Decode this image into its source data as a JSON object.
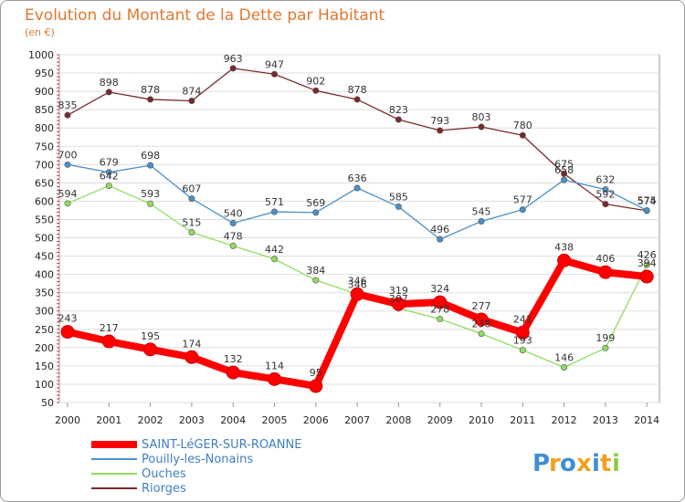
{
  "chart_data": {
    "type": "line",
    "title": "Evolution du Montant de la Dette par Habitant",
    "subtitle": "(en €)",
    "xlabel": "",
    "ylabel": "",
    "ylim": [
      50,
      1000
    ],
    "yticks": [
      50,
      100,
      150,
      200,
      250,
      300,
      350,
      400,
      450,
      500,
      550,
      600,
      650,
      700,
      750,
      800,
      850,
      900,
      950,
      1000
    ],
    "x": [
      "2000",
      "2001",
      "2002",
      "2003",
      "2004",
      "2005",
      "2006",
      "2007",
      "2008",
      "2009",
      "2010",
      "2011",
      "2012",
      "2013",
      "2014"
    ],
    "grid": true,
    "legend_position": "bottom-left",
    "series": [
      {
        "name": "SAINT-LéGER-SUR-ROANNE",
        "color": "#ff0000",
        "values": [
          243,
          217,
          195,
          174,
          132,
          114,
          95,
          346,
          319,
          324,
          277,
          241,
          438,
          406,
          394
        ]
      },
      {
        "name": "Pouilly-les-Nonains",
        "color": "#4a90c8",
        "values": [
          700,
          679,
          698,
          607,
          540,
          571,
          569,
          636,
          585,
          496,
          545,
          577,
          658,
          632,
          575
        ]
      },
      {
        "name": "Ouches",
        "color": "#90dd60",
        "values": [
          594,
          642,
          593,
          515,
          478,
          442,
          384,
          346,
          307,
          278,
          238,
          193,
          146,
          199,
          426
        ]
      },
      {
        "name": "Riorges",
        "color": "#7a2a2a",
        "values": [
          835,
          898,
          878,
          874,
          963,
          947,
          902,
          878,
          823,
          793,
          803,
          780,
          675,
          592,
          574
        ]
      }
    ]
  },
  "logo": {
    "text": "Proxiti"
  }
}
